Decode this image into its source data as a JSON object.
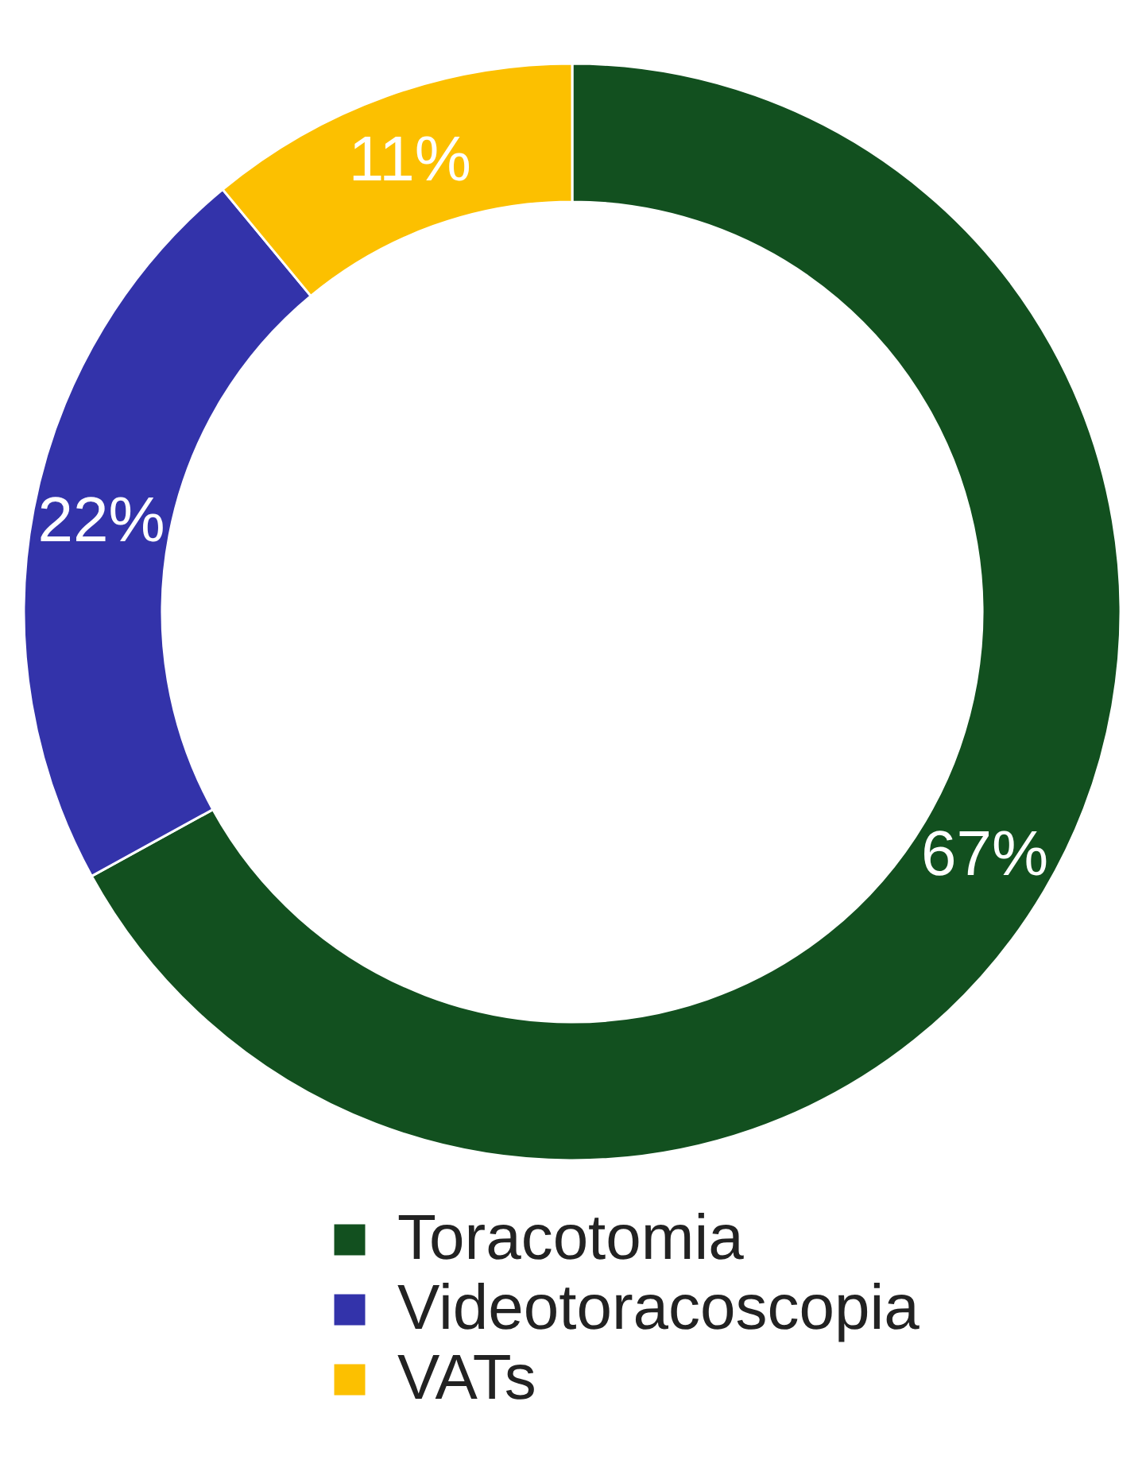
{
  "chart_data": {
    "type": "donut",
    "categories": [
      "Toracotomia",
      "Videotoracoscopia",
      "VATs"
    ],
    "values": [
      67,
      22,
      11
    ],
    "colors": [
      "#12501f",
      "#3333aa",
      "#fcc000"
    ],
    "value_labels": [
      "67%",
      "22%",
      "11%"
    ],
    "legend": "bottom"
  }
}
